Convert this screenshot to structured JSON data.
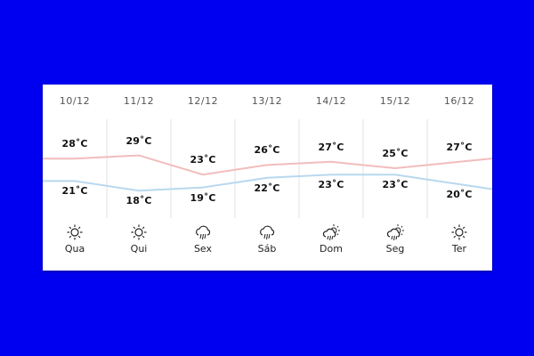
{
  "unit": "°C",
  "colors": {
    "background": "#0000f0",
    "high_line": "#f2bcbc",
    "low_line": "#b8d8ef"
  },
  "days": [
    {
      "date": "10/12",
      "high": "28˚C",
      "low": "21˚C",
      "high_value": 28,
      "low_value": 21,
      "icon": "sun-icon",
      "day": "Qua"
    },
    {
      "date": "11/12",
      "high": "29˚C",
      "low": "18˚C",
      "high_value": 29,
      "low_value": 18,
      "icon": "sun-icon",
      "day": "Qui"
    },
    {
      "date": "12/12",
      "high": "23˚C",
      "low": "19˚C",
      "high_value": 23,
      "low_value": 19,
      "icon": "rain-cloud-icon",
      "day": "Sex"
    },
    {
      "date": "13/12",
      "high": "26˚C",
      "low": "22˚C",
      "high_value": 26,
      "low_value": 22,
      "icon": "rain-cloud-icon",
      "day": "Sáb"
    },
    {
      "date": "14/12",
      "high": "27˚C",
      "low": "23˚C",
      "high_value": 27,
      "low_value": 23,
      "icon": "sun-rain-cloud-icon",
      "day": "Dom"
    },
    {
      "date": "15/12",
      "high": "25˚C",
      "low": "23˚C",
      "high_value": 25,
      "low_value": 23,
      "icon": "sun-rain-cloud-icon",
      "day": "Seg"
    },
    {
      "date": "16/12",
      "high": "27˚C",
      "low": "20˚C",
      "high_value": 27,
      "low_value": 20,
      "icon": "sun-icon",
      "day": "Ter"
    }
  ]
}
